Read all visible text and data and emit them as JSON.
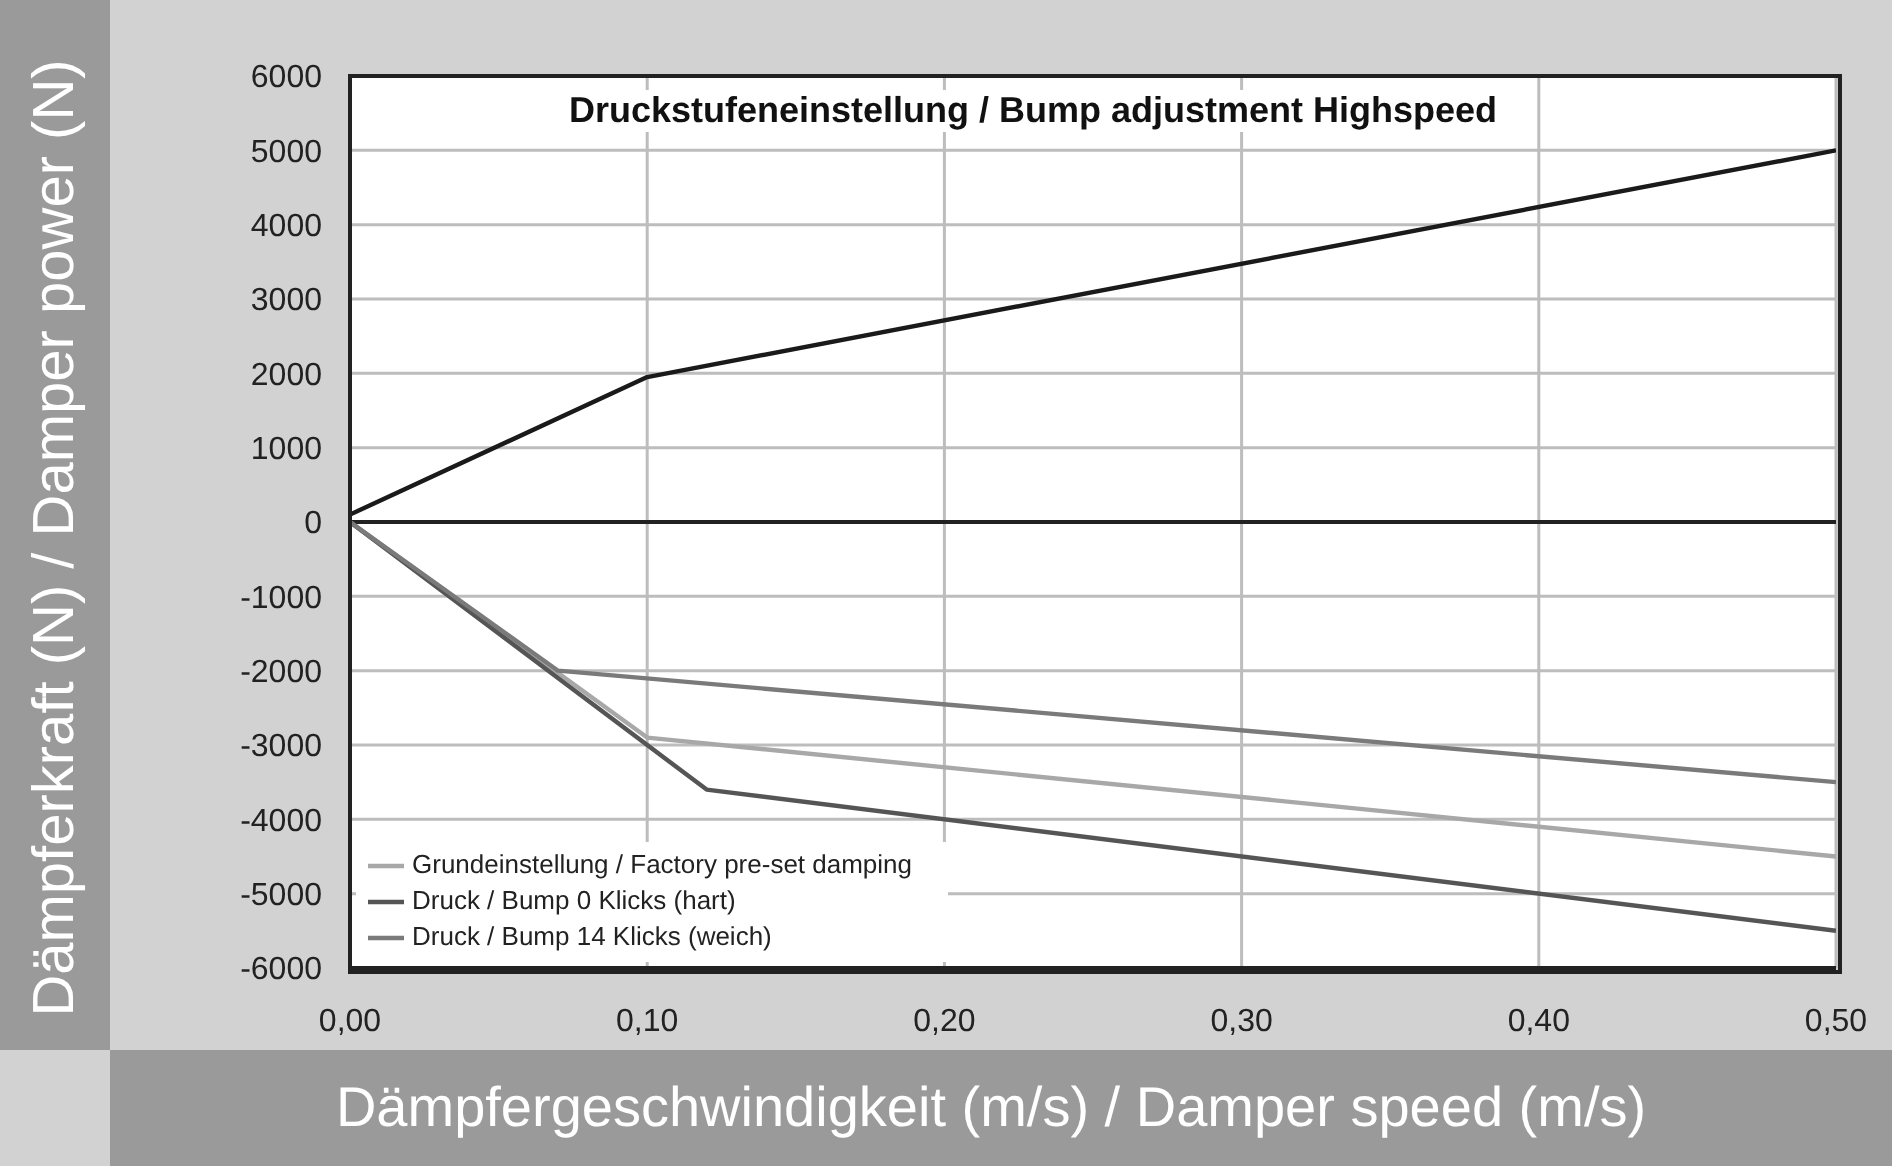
{
  "chart_data": {
    "type": "line",
    "title": "Druckstufeneinstellung / Bump adjustment Highspeed",
    "xlabel": "Dämpfergeschwindigkeit (m/s) / Damper speed (m/s)",
    "ylabel": "Dämpferkraft (N) / Damper power (N)",
    "xlim": [
      0,
      0.5
    ],
    "xticks": [
      {
        "value": 0,
        "label": "0,00"
      },
      {
        "value": 0.1,
        "label": "0,10"
      },
      {
        "value": 0.2,
        "label": "0,20"
      },
      {
        "value": 0.3,
        "label": "0,30"
      },
      {
        "value": 0.4,
        "label": "0,40"
      },
      {
        "value": 0.5,
        "label": "0,50"
      }
    ],
    "ylim": [
      -6000,
      6000
    ],
    "yticks": [
      -6000,
      -5000,
      -4000,
      -3000,
      -2000,
      -1000,
      0,
      1000,
      2000,
      3000,
      4000,
      5000,
      6000
    ],
    "grid": true,
    "legend": "bottom left",
    "marker": "none",
    "line_style": "solid",
    "ref_lines": [
      {
        "axis": "y",
        "value": 0,
        "color": "#222222"
      }
    ],
    "series": [
      {
        "color": "#1a1a1a",
        "x": [
          0,
          0.1,
          0.5
        ],
        "values": [
          100,
          1950,
          5000
        ]
      },
      {
        "name": "Grundeinstellung / Factory pre-set damping",
        "color": "#a8a8a8",
        "x": [
          0,
          0.1,
          0.5
        ],
        "values": [
          0,
          -2900,
          -4500
        ]
      },
      {
        "name": "Druck / Bump 0 Klicks (hart)",
        "color": "#555555",
        "x": [
          0,
          0.12,
          0.5
        ],
        "values": [
          0,
          -3600,
          -5500
        ]
      },
      {
        "name": "Druck / Bump 14 Klicks (weich)",
        "color": "#7a7a7a",
        "x": [
          0,
          0.07,
          0.5
        ],
        "values": [
          0,
          -2000,
          -3500
        ]
      }
    ]
  }
}
